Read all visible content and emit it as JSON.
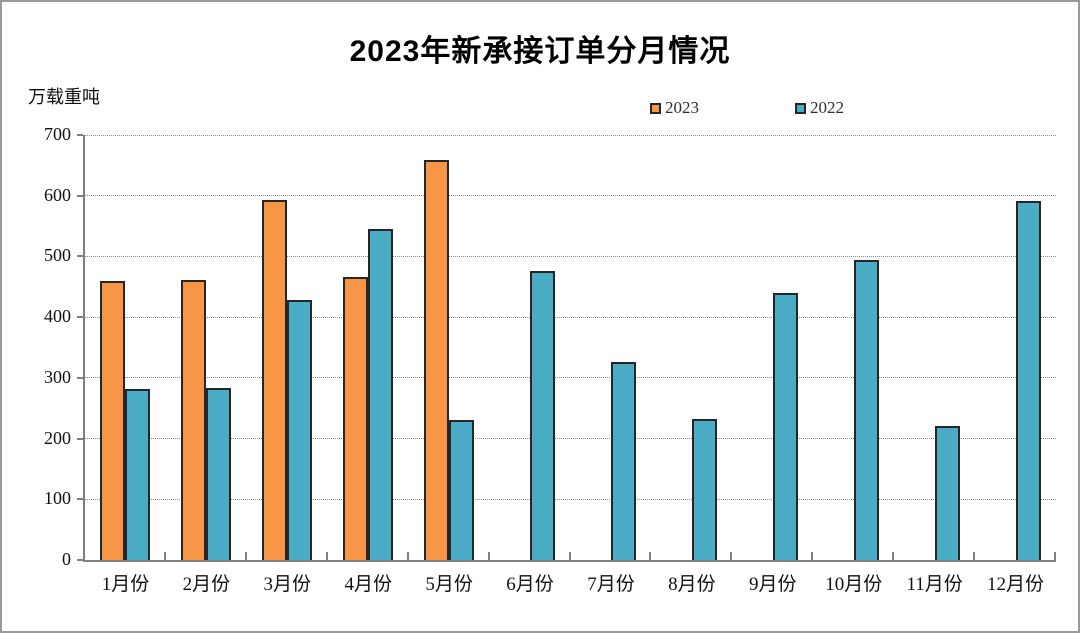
{
  "figure": {
    "background": "#ffffff",
    "border_color": "#9a9a9a"
  },
  "chart_data": {
    "type": "bar",
    "title": "2023年新承接订单分月情况",
    "ylabel": "万载重吨",
    "xlabel": "",
    "categories": [
      "1月份",
      "2月份",
      "3月份",
      "4月份",
      "5月份",
      "6月份",
      "7月份",
      "8月份",
      "9月份",
      "10月份",
      "11月份",
      "12月份"
    ],
    "series": [
      {
        "name": "2023",
        "color": "#F79646",
        "border_color": "#262626",
        "values": [
          460,
          462,
          593,
          466,
          659,
          null,
          null,
          null,
          null,
          null,
          null,
          null
        ]
      },
      {
        "name": "2022",
        "color": "#4BACC6",
        "border_color": "#262626",
        "values": [
          281,
          283,
          428,
          546,
          231,
          476,
          326,
          232,
          440,
          494,
          220,
          591
        ]
      }
    ],
    "ylim": [
      0,
      700
    ],
    "ytick_step": 100,
    "ytick_labels": [
      "0",
      "100",
      "200",
      "300",
      "400",
      "500",
      "600",
      "700"
    ],
    "grid": "horizontal-dotted",
    "legend_position": "top-center-right",
    "axis_color": "#7f7f7f"
  }
}
